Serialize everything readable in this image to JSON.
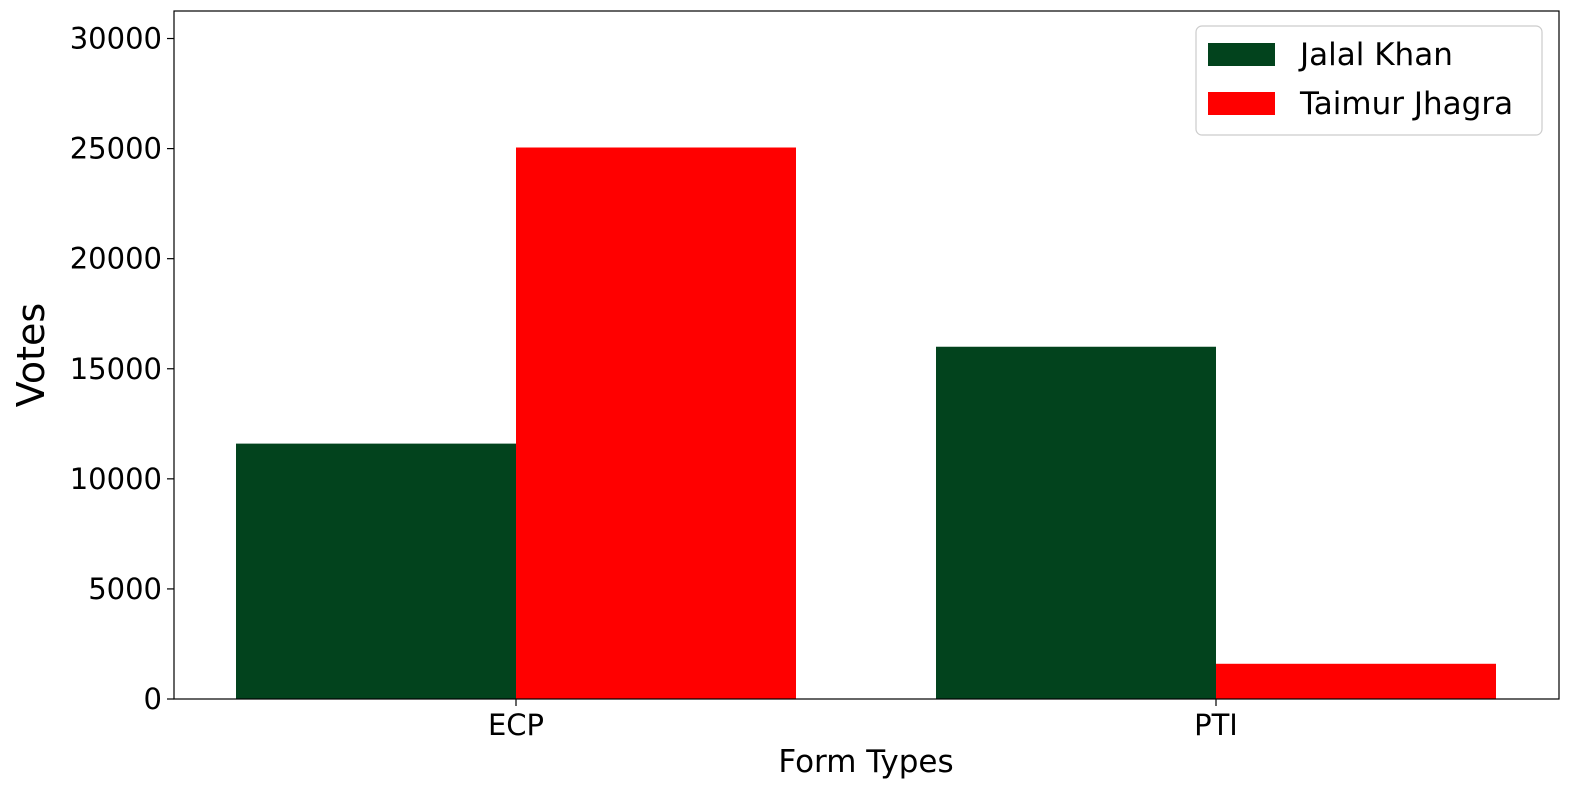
{
  "chart_data": {
    "type": "bar",
    "title": "",
    "xlabel": "Form Types",
    "ylabel": "Votes",
    "categories": [
      "ECP",
      "PTI"
    ],
    "series": [
      {
        "name": "Jalal Khan",
        "color": "#02431d",
        "values": [
          11600,
          16000
        ]
      },
      {
        "name": "Taimur Jhagra",
        "color": "#ff0000",
        "values": [
          25050,
          1600
        ]
      }
    ],
    "ylim": [
      0,
      31250
    ],
    "yticks": [
      0,
      5000,
      10000,
      15000,
      20000,
      25000,
      30000
    ],
    "grid": false,
    "legend": "top-right"
  }
}
